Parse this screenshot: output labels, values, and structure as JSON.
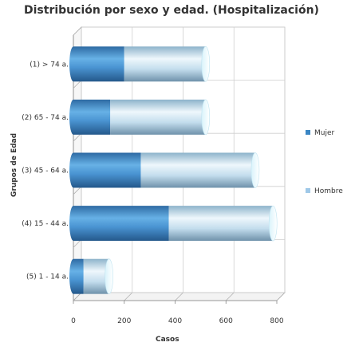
{
  "chart_data": {
    "type": "bar",
    "orientation": "horizontal",
    "stacked": true,
    "style": "3d-cylinder",
    "title": "Distribución por sexo y edad. (Hospitalización)",
    "xlabel": "Casos",
    "ylabel": "Grupos de Edad",
    "categories": [
      "(1) > 74 a.",
      "(2) 65 - 74 a.",
      "(3) 45 - 64 a.",
      "(4) 15 - 44 a.",
      "(5) 1 - 14 a."
    ],
    "series": [
      {
        "name": "Mujer",
        "values": [
          200,
          145,
          265,
          375,
          40
        ],
        "color": "#3a86c4"
      },
      {
        "name": "Hombre",
        "values": [
          320,
          375,
          450,
          410,
          100
        ],
        "color": "#9fc8e8"
      }
    ],
    "xlim": [
      0,
      800
    ],
    "xticks": [
      "0",
      "200",
      "400",
      "600",
      "800"
    ],
    "grid": true,
    "legend_position": "right"
  }
}
